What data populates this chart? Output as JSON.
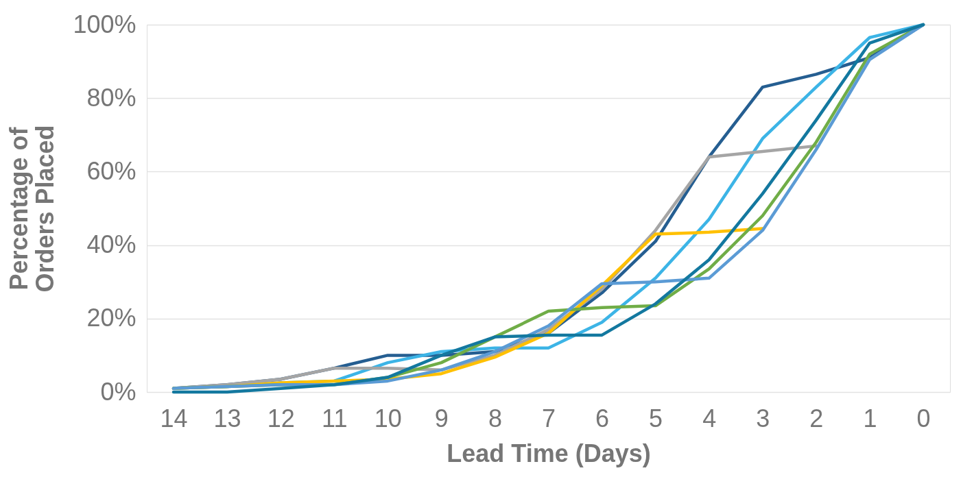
{
  "chart_data": {
    "type": "line",
    "xlabel": "Lead Time (Days)",
    "ylabel": "Percentage of Orders Placed",
    "categories": [
      "14",
      "13",
      "12",
      "11",
      "10",
      "9",
      "8",
      "7",
      "6",
      "5",
      "4",
      "3",
      "2",
      "1",
      "0"
    ],
    "series": [
      {
        "color": "#255e91",
        "values": [
          1,
          2,
          3.5,
          6.5,
          10,
          10,
          11,
          16,
          27,
          41,
          64,
          83,
          86.5,
          91,
          100
        ]
      },
      {
        "color": "#3cb4e6",
        "values": [
          1,
          1.5,
          2.5,
          3,
          8,
          11,
          12,
          12,
          19,
          31,
          47,
          69,
          83,
          96.5,
          100
        ]
      },
      {
        "color": "#a5a5a5",
        "values": [
          1,
          2,
          3.5,
          6.5,
          6.5,
          6,
          10,
          17,
          28,
          44,
          64,
          65.5,
          67,
          null,
          null
        ]
      },
      {
        "color": "#ffc000",
        "values": [
          1,
          1.5,
          2.5,
          3,
          3.5,
          5,
          9.5,
          16,
          29,
          43,
          43.5,
          44.5,
          null,
          null,
          null
        ]
      },
      {
        "color": "#70ad47",
        "values": [
          1,
          1.5,
          2,
          2,
          4,
          8,
          15,
          22,
          23,
          23.5,
          33.5,
          48,
          68,
          92,
          100
        ]
      },
      {
        "color": "#5b9bd5",
        "values": [
          1,
          1.5,
          2,
          2,
          3,
          6,
          11,
          18,
          29.5,
          30,
          31,
          44,
          66,
          90.5,
          100
        ]
      },
      {
        "color": "#13789f",
        "values": [
          0,
          0,
          1,
          2,
          4,
          10,
          15,
          15.5,
          15.5,
          24,
          36,
          54,
          74,
          95,
          100
        ]
      }
    ],
    "ylim": [
      0,
      100
    ],
    "yticks": [
      {
        "value": 0,
        "label": "0%"
      },
      {
        "value": 20,
        "label": "20%"
      },
      {
        "value": 40,
        "label": "40%"
      },
      {
        "value": 60,
        "label": "60%"
      },
      {
        "value": 80,
        "label": "80%"
      },
      {
        "value": 100,
        "label": "100%"
      }
    ],
    "grid": "y",
    "legend": false,
    "marker": "none",
    "line_style": "solid"
  }
}
